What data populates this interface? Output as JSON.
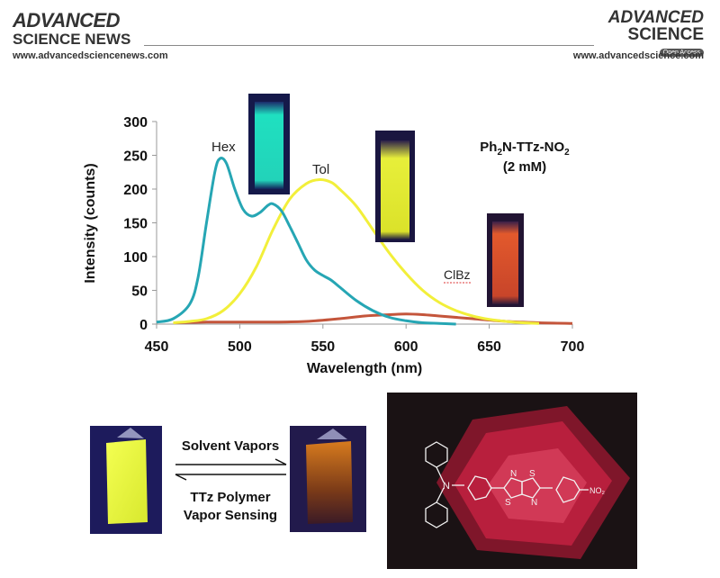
{
  "header": {
    "left_brand_line1": "ADVANCED",
    "left_brand_line2": "SCIENCE NEWS",
    "left_url": "www.advancedsciencenews.com",
    "right_brand_line1": "ADVANCED",
    "right_brand_line2": "SCIENCE",
    "right_badge": "Open Access",
    "right_url": "www.advancedscience.com"
  },
  "compound": {
    "name_prefix": "Ph",
    "name_sub1": "2",
    "name_mid": "N-TTz-NO",
    "name_sub2": "2",
    "concentration": "(2 mM)"
  },
  "chart_data": {
    "type": "line",
    "xlabel": "Wavelength (nm)",
    "ylabel": "Intensity (counts)",
    "xlim": [
      450,
      700
    ],
    "ylim": [
      0,
      300
    ],
    "xticks": [
      "450",
      "500",
      "550",
      "600",
      "650",
      "700"
    ],
    "yticks": [
      "0",
      "50",
      "100",
      "150",
      "200",
      "250",
      "300"
    ],
    "series": [
      {
        "name": "Hex",
        "color": "#26a6b4",
        "x": [
          450,
          460,
          470,
          475,
          480,
          485,
          488,
          492,
          497,
          502,
          507,
          512,
          517,
          520,
          525,
          530,
          535,
          540,
          545,
          550,
          555,
          560,
          570,
          580,
          590,
          600,
          610,
          620,
          630
        ],
        "y": [
          3,
          8,
          30,
          70,
          150,
          225,
          245,
          238,
          200,
          170,
          160,
          165,
          176,
          178,
          168,
          145,
          120,
          95,
          80,
          72,
          65,
          55,
          35,
          20,
          10,
          5,
          2,
          1,
          0
        ]
      },
      {
        "name": "Tol",
        "color": "#f2ef3a",
        "x": [
          460,
          470,
          480,
          490,
          500,
          510,
          520,
          530,
          540,
          548,
          555,
          560,
          570,
          580,
          590,
          600,
          610,
          620,
          630,
          640,
          650,
          660,
          670,
          680
        ],
        "y": [
          2,
          4,
          8,
          20,
          45,
          85,
          140,
          185,
          208,
          214,
          210,
          200,
          175,
          140,
          105,
          75,
          50,
          32,
          20,
          12,
          7,
          4,
          2,
          1
        ]
      },
      {
        "name": "ClBz",
        "color": "#c4553b",
        "x": [
          460,
          480,
          500,
          520,
          540,
          560,
          575,
          590,
          600,
          610,
          620,
          640,
          660,
          680,
          700
        ],
        "y": [
          2,
          3,
          3,
          3,
          4,
          8,
          12,
          14,
          15,
          14,
          12,
          8,
          4,
          2,
          1
        ]
      }
    ]
  },
  "lower_panel": {
    "arrow_top_label": "Solvent Vapors",
    "arrow_bottom_line1": "TTz Polymer",
    "arrow_bottom_line2": "Vapor Sensing",
    "molecule_substituent": "NO₂",
    "atom_n": "N",
    "atom_s": "S"
  }
}
